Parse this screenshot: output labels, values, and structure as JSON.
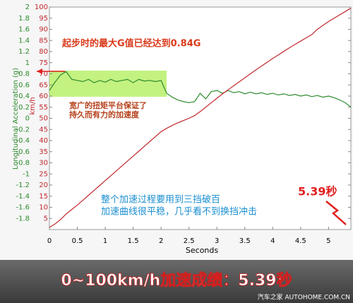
{
  "chart_data": {
    "type": "line",
    "x_label": "Seconds",
    "y_label": "Longitudinal Acceleration (g)",
    "y2_label": "km/h",
    "xlim": [
      0,
      5.4
    ],
    "xticks": [
      0,
      0.5,
      1,
      1.5,
      2,
      2.5,
      3,
      3.5,
      4,
      4.5,
      5
    ],
    "ylim": [
      -2,
      2
    ],
    "yticks": [
      -1.8,
      -1.6,
      -1.4,
      -1.2,
      -1,
      -0.8,
      -0.6,
      -0.4,
      -0.2,
      0,
      0.2,
      0.4,
      0.6,
      0.8,
      1,
      1.2,
      1.4,
      1.6,
      1.8,
      2
    ],
    "y2lim": [
      0,
      100
    ],
    "y2ticks": [
      5,
      10,
      15,
      20,
      25,
      30,
      35,
      40,
      45,
      50,
      55,
      60,
      65,
      70,
      75,
      80,
      85,
      90,
      95,
      100
    ],
    "x": [
      0,
      0.1,
      0.2,
      0.3,
      0.4,
      0.5,
      0.6,
      0.7,
      0.8,
      0.9,
      1.0,
      1.1,
      1.2,
      1.3,
      1.4,
      1.5,
      1.6,
      1.7,
      1.8,
      1.9,
      2.0,
      2.1,
      2.2,
      2.3,
      2.4,
      2.5,
      2.6,
      2.7,
      2.8,
      2.9,
      3.0,
      3.1,
      3.2,
      3.3,
      3.4,
      3.5,
      3.6,
      3.7,
      3.8,
      3.9,
      4.0,
      4.1,
      4.2,
      4.3,
      4.4,
      4.5,
      4.6,
      4.7,
      4.8,
      4.9,
      5.0,
      5.1,
      5.2,
      5.3,
      5.4
    ],
    "series": [
      {
        "color": "#2e8b2e",
        "values": [
          0.5,
          0.65,
          0.78,
          0.84,
          0.7,
          0.68,
          0.66,
          0.7,
          0.64,
          0.68,
          0.65,
          0.7,
          0.66,
          0.68,
          0.7,
          0.64,
          0.7,
          0.67,
          0.68,
          0.66,
          0.68,
          0.45,
          0.38,
          0.33,
          0.3,
          0.28,
          0.3,
          0.45,
          0.35,
          0.48,
          0.5,
          0.45,
          0.5,
          0.46,
          0.48,
          0.44,
          0.47,
          0.44,
          0.46,
          0.43,
          0.45,
          0.42,
          0.44,
          0.41,
          0.43,
          0.4,
          0.42,
          0.39,
          0.41,
          0.38,
          0.4,
          0.37,
          0.33,
          0.28,
          0.2
        ]
      },
      {
        "color": "#c0282d",
        "axis": "y2",
        "values": [
          1,
          2.5,
          4.5,
          7,
          9,
          11,
          13.2,
          15.4,
          17.6,
          19.8,
          22,
          24.2,
          26.4,
          28.6,
          30.8,
          33,
          35.2,
          37.4,
          39.6,
          41.8,
          44,
          45.5,
          46.8,
          48,
          49,
          50,
          51.2,
          53,
          55,
          57,
          59,
          61,
          62.8,
          64.6,
          66.4,
          68.2,
          70,
          71.8,
          73.5,
          75.2,
          76.9,
          78.5,
          80.1,
          81.7,
          83.2,
          84.7,
          86.2,
          87.6,
          90,
          91.8,
          93.5,
          95,
          96.5,
          98,
          99.5
        ]
      }
    ],
    "annotations": [
      "起步时的最大G值已经达到0.84G",
      "宽广的扭矩平台保证了",
      "持久而有力的加速度",
      "整个加速过程要用到三挡破百",
      "加速曲线很平稳，几乎看不到换挡冲击",
      "5.39秒"
    ],
    "banner": "0~100km/h加速成绩：5.39秒",
    "watermark": "汽车之家 AUTOHOME.COM.CN"
  }
}
